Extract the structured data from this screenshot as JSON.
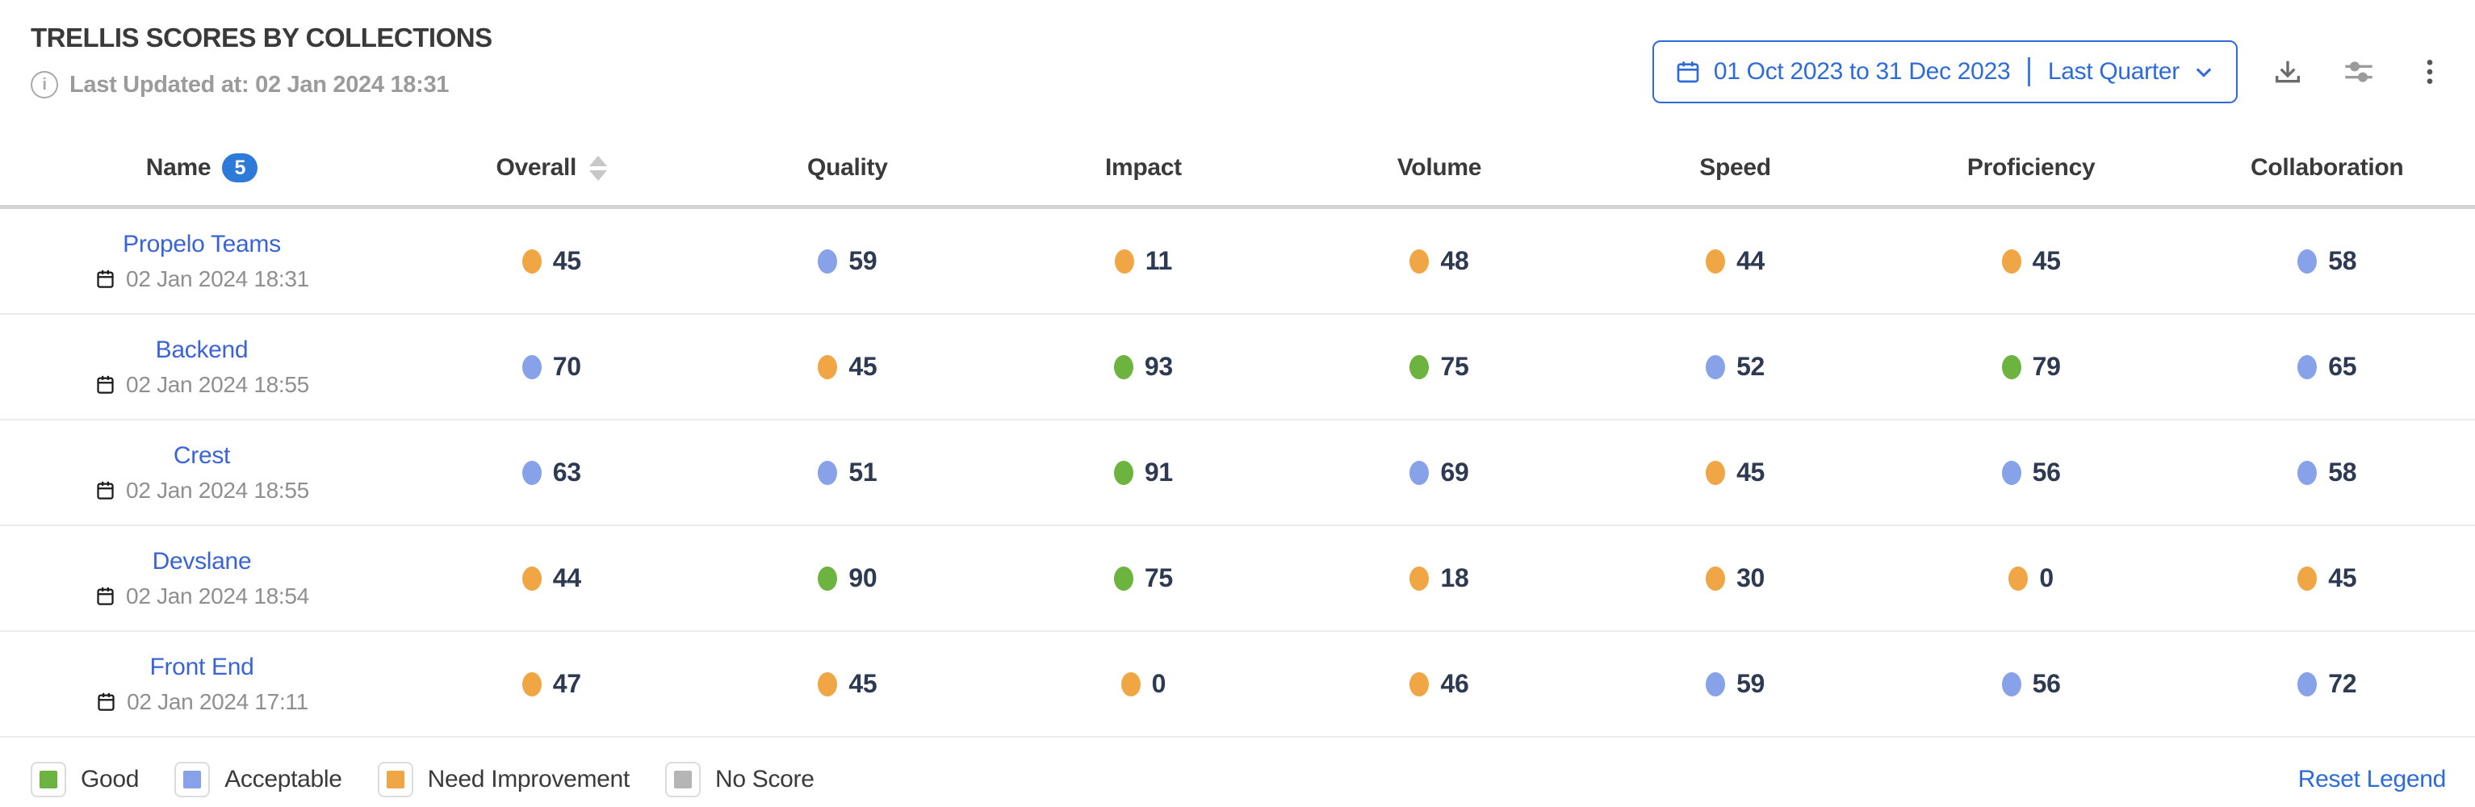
{
  "header": {
    "title": "TRELLIS SCORES BY COLLECTIONS",
    "last_updated": "Last Updated at: 02 Jan 2024 18:31"
  },
  "controls": {
    "date_range": "01 Oct 2023 to 31 Dec 2023",
    "preset": "Last Quarter"
  },
  "table": {
    "columns": [
      {
        "label": "Name",
        "badge": "5"
      },
      {
        "label": "Overall",
        "sortable": true
      },
      {
        "label": "Quality"
      },
      {
        "label": "Impact"
      },
      {
        "label": "Volume"
      },
      {
        "label": "Speed"
      },
      {
        "label": "Proficiency"
      },
      {
        "label": "Collaboration"
      }
    ],
    "rows": [
      {
        "name": "Propelo Teams",
        "date": "02 Jan 2024 18:31",
        "scores": [
          {
            "value": 45,
            "status": "need_improvement"
          },
          {
            "value": 59,
            "status": "acceptable"
          },
          {
            "value": 11,
            "status": "need_improvement"
          },
          {
            "value": 48,
            "status": "need_improvement"
          },
          {
            "value": 44,
            "status": "need_improvement"
          },
          {
            "value": 45,
            "status": "need_improvement"
          },
          {
            "value": 58,
            "status": "acceptable"
          }
        ]
      },
      {
        "name": "Backend",
        "date": "02 Jan 2024 18:55",
        "scores": [
          {
            "value": 70,
            "status": "acceptable"
          },
          {
            "value": 45,
            "status": "need_improvement"
          },
          {
            "value": 93,
            "status": "good"
          },
          {
            "value": 75,
            "status": "good"
          },
          {
            "value": 52,
            "status": "acceptable"
          },
          {
            "value": 79,
            "status": "good"
          },
          {
            "value": 65,
            "status": "acceptable"
          }
        ]
      },
      {
        "name": "Crest",
        "date": "02 Jan 2024 18:55",
        "scores": [
          {
            "value": 63,
            "status": "acceptable"
          },
          {
            "value": 51,
            "status": "acceptable"
          },
          {
            "value": 91,
            "status": "good"
          },
          {
            "value": 69,
            "status": "acceptable"
          },
          {
            "value": 45,
            "status": "need_improvement"
          },
          {
            "value": 56,
            "status": "acceptable"
          },
          {
            "value": 58,
            "status": "acceptable"
          }
        ]
      },
      {
        "name": "Devslane",
        "date": "02 Jan 2024 18:54",
        "scores": [
          {
            "value": 44,
            "status": "need_improvement"
          },
          {
            "value": 90,
            "status": "good"
          },
          {
            "value": 75,
            "status": "good"
          },
          {
            "value": 18,
            "status": "need_improvement"
          },
          {
            "value": 30,
            "status": "need_improvement"
          },
          {
            "value": 0,
            "status": "need_improvement"
          },
          {
            "value": 45,
            "status": "need_improvement"
          }
        ]
      },
      {
        "name": "Front End",
        "date": "02 Jan 2024 17:11",
        "scores": [
          {
            "value": 47,
            "status": "need_improvement"
          },
          {
            "value": 45,
            "status": "need_improvement"
          },
          {
            "value": 0,
            "status": "need_improvement"
          },
          {
            "value": 46,
            "status": "need_improvement"
          },
          {
            "value": 59,
            "status": "acceptable"
          },
          {
            "value": 56,
            "status": "acceptable"
          },
          {
            "value": 72,
            "status": "acceptable"
          }
        ]
      }
    ]
  },
  "legend": {
    "items": [
      {
        "label": "Good",
        "status": "good"
      },
      {
        "label": "Acceptable",
        "status": "acceptable"
      },
      {
        "label": "Need Improvement",
        "status": "need_improvement"
      },
      {
        "label": "No Score",
        "status": "no_score"
      }
    ],
    "reset_label": "Reset Legend"
  },
  "colors": {
    "accent_blue": "#2d6bd9",
    "link_blue": "#3a63d8",
    "badge_blue": "#2d7ad9",
    "status": {
      "good": "#6cb33f",
      "acceptable": "#87a2e8",
      "need_improvement": "#f0a644",
      "no_score": "#b5b5b5"
    }
  },
  "icons": {
    "info": "info-icon",
    "calendar": "calendar-icon",
    "chevron_down": "chevron-down-icon",
    "download": "download-icon",
    "sliders": "sliders-icon",
    "kebab": "more-options-icon",
    "sorter": "sort-carets-icon"
  }
}
